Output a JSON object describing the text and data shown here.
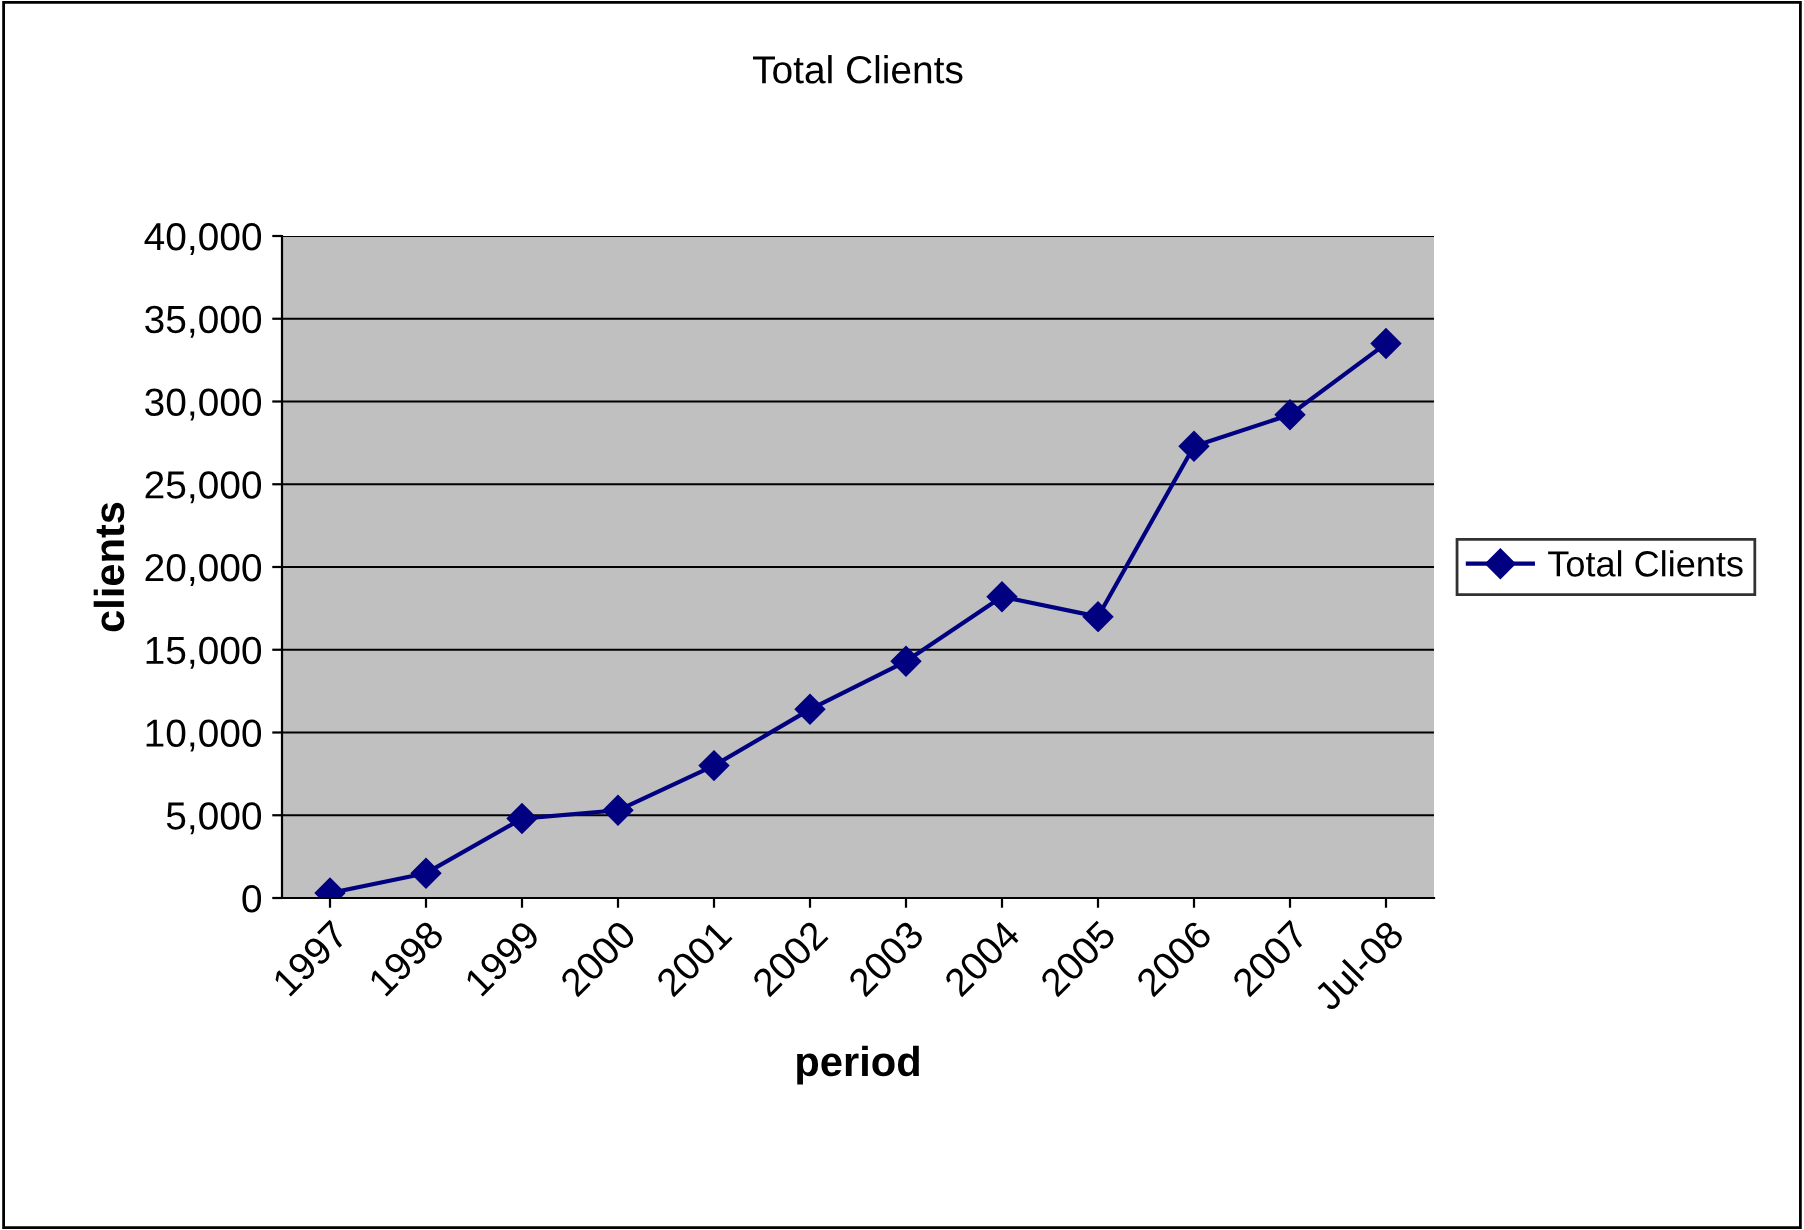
{
  "chart_data": {
    "type": "line",
    "title": "Total Clients",
    "xlabel": "period",
    "ylabel": "clients",
    "categories": [
      "1997",
      "1998",
      "1999",
      "2000",
      "2001",
      "2002",
      "2003",
      "2004",
      "2005",
      "2006",
      "2007",
      "Jul-08"
    ],
    "series": [
      {
        "name": "Total Clients",
        "color": "#000080",
        "values": [
          300,
          1500,
          4800,
          5300,
          8000,
          11400,
          14300,
          18200,
          17000,
          27300,
          29200,
          33500
        ]
      }
    ],
    "ylim": [
      0,
      40000
    ],
    "yticks": [
      {
        "value": 0,
        "label": "0"
      },
      {
        "value": 5000,
        "label": "5,000"
      },
      {
        "value": 10000,
        "label": "10,000"
      },
      {
        "value": 15000,
        "label": "15,000"
      },
      {
        "value": 20000,
        "label": "20,000"
      },
      {
        "value": 25000,
        "label": "25,000"
      },
      {
        "value": 30000,
        "label": "30,000"
      },
      {
        "value": 35000,
        "label": "35,000"
      },
      {
        "value": 40000,
        "label": "40,000"
      }
    ],
    "grid": "y",
    "legend": "right",
    "marker": "diamond",
    "line_style": "solid"
  }
}
